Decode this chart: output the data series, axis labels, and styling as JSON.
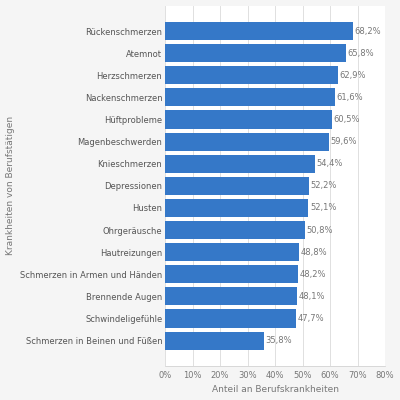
{
  "categories": [
    "Schmerzen in Beinen und Füßen",
    "Schwindeligefühle",
    "Brennende Augen",
    "Schmerzen in Armen und Händen",
    "Hautreizungen",
    "Ohrgeräusche",
    "Husten",
    "Depressionen",
    "Knieschmerzen",
    "Magenbeschwerden",
    "Hüftprobleme",
    "Nackenschmerzen",
    "Herzschmerzen",
    "Atemnot",
    "Rückenschmerzen"
  ],
  "values": [
    35.8,
    47.7,
    48.1,
    48.2,
    48.8,
    50.8,
    52.1,
    52.2,
    54.4,
    59.6,
    60.5,
    61.6,
    62.9,
    65.8,
    68.2
  ],
  "labels": [
    "35,8%",
    "47,7%",
    "48,1%",
    "48,2%",
    "48,8%",
    "50,8%",
    "52,1%",
    "52,2%",
    "54,4%",
    "59,6%",
    "60,5%",
    "61,6%",
    "62,9%",
    "65,8%",
    "68,2%"
  ],
  "bar_color": "#3578c8",
  "background_color": "#f5f5f5",
  "plot_bg_color": "#ffffff",
  "xlabel": "Anteil an Berufskrankheiten",
  "ylabel": "Krankheiten von Berufstätigen",
  "xlim": [
    0,
    80
  ],
  "xticks": [
    0,
    10,
    20,
    30,
    40,
    50,
    60,
    70,
    80
  ],
  "xlabel_fontsize": 6.5,
  "ylabel_fontsize": 6.5,
  "tick_fontsize": 6,
  "label_fontsize": 6,
  "bar_height": 0.82
}
